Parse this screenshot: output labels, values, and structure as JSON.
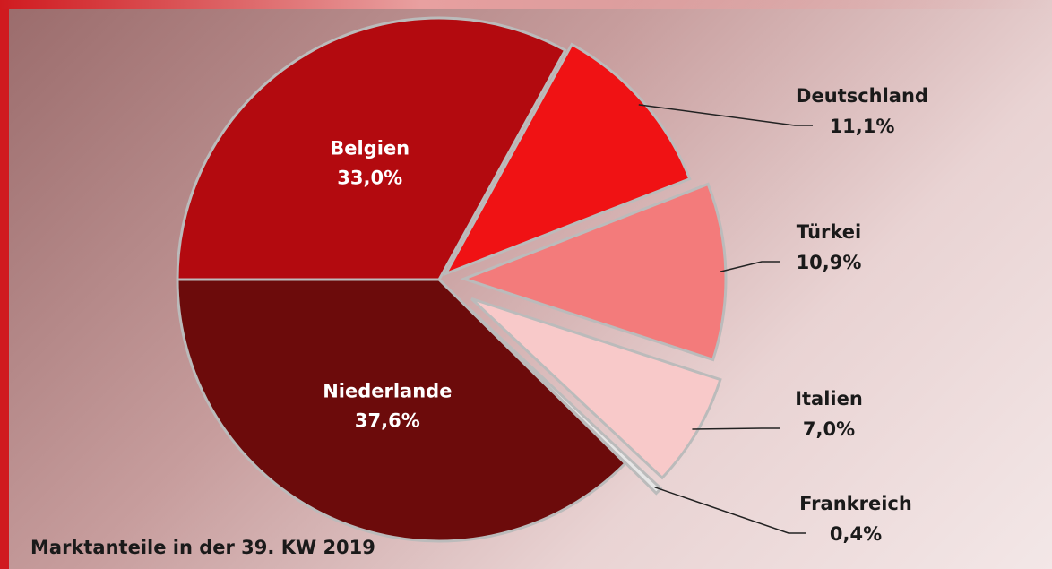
{
  "chart_data": {
    "type": "pie",
    "title": "Marktanteile in der 39. KW 2019",
    "categories": [
      "Belgien",
      "Deutschland",
      "Türkei",
      "Italien",
      "Frankreich",
      "Niederlande"
    ],
    "values": [
      33.0,
      11.1,
      10.9,
      7.0,
      0.4,
      37.6
    ],
    "value_labels": [
      "33,0%",
      "11,1%",
      "10,9%",
      "7,0%",
      "0,4%",
      "37,6%"
    ],
    "colors": [
      "#b30a0f",
      "#f01214",
      "#f37b7b",
      "#f8c9c9",
      "#e6e6e6",
      "#6c0b0b"
    ]
  }
}
